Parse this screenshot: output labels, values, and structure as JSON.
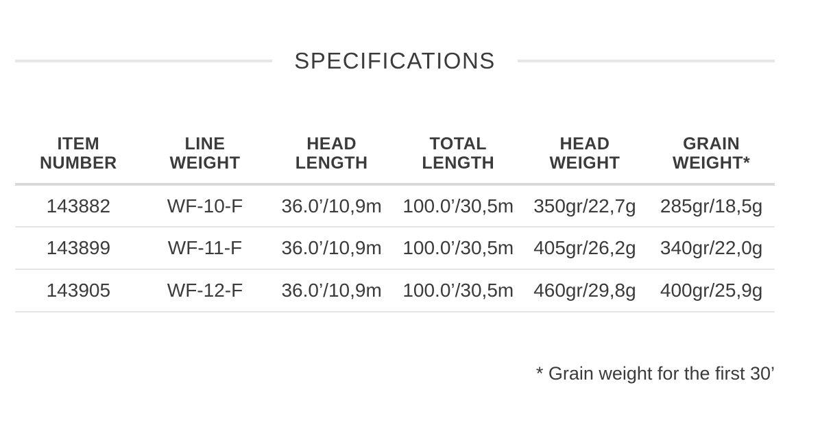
{
  "page": {
    "title": "SPECIFICATIONS",
    "footnote": "* Grain weight for the first 30’"
  },
  "table": {
    "headers": [
      "ITEM\nNUMBER",
      "LINE\nWEIGHT",
      "HEAD\nLENGTH",
      "TOTAL\nLENGTH",
      "HEAD\nWEIGHT",
      "GRAIN\nWEIGHT*"
    ],
    "rows": [
      [
        "143882",
        "WF-10-F",
        "36.0’/10,9m",
        "100.0’/30,5m",
        "350gr/22,7g",
        "285gr/18,5g"
      ],
      [
        "143899",
        "WF-11-F",
        "36.0’/10,9m",
        "100.0’/30,5m",
        "405gr/26,2g",
        "340gr/22,0g"
      ],
      [
        "143905",
        "WF-12-F",
        "36.0’/10,9m",
        "100.0’/30,5m",
        "460gr/29,8g",
        "400gr/25,9g"
      ]
    ]
  },
  "colors": {
    "text_color": "#3b3b3b",
    "divider_color": "#e7e7e7",
    "header_divider_color": "#d9d9d9",
    "row_divider_color": "#e5e5e5"
  }
}
